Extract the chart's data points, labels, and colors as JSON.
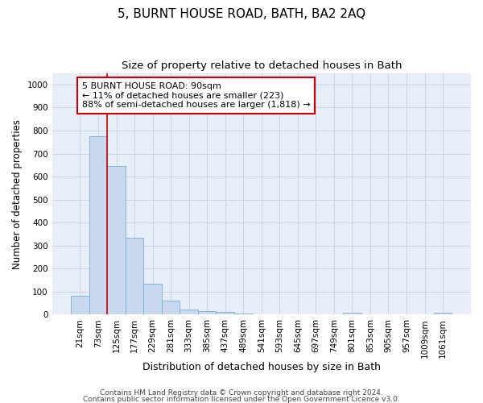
{
  "title": "5, BURNT HOUSE ROAD, BATH, BA2 2AQ",
  "subtitle": "Size of property relative to detached houses in Bath",
  "xlabel": "Distribution of detached houses by size in Bath",
  "ylabel": "Number of detached properties",
  "bar_color": "#c8d9ef",
  "bar_edge_color": "#7aadd4",
  "annotation_box_color": "#cc0000",
  "vline_color": "#cc0000",
  "categories": [
    "21sqm",
    "73sqm",
    "125sqm",
    "177sqm",
    "229sqm",
    "281sqm",
    "333sqm",
    "385sqm",
    "437sqm",
    "489sqm",
    "541sqm",
    "593sqm",
    "645sqm",
    "697sqm",
    "749sqm",
    "801sqm",
    "853sqm",
    "905sqm",
    "957sqm",
    "1009sqm",
    "1061sqm"
  ],
  "values": [
    83,
    775,
    645,
    335,
    135,
    60,
    22,
    16,
    12,
    6,
    2,
    0,
    0,
    0,
    0,
    7,
    0,
    0,
    0,
    0,
    7
  ],
  "ylim": [
    0,
    1050
  ],
  "yticks": [
    0,
    100,
    200,
    300,
    400,
    500,
    600,
    700,
    800,
    900,
    1000
  ],
  "annotation_text": "5 BURNT HOUSE ROAD: 90sqm\n← 11% of detached houses are smaller (223)\n88% of semi-detached houses are larger (1,818) →",
  "footnote1": "Contains HM Land Registry data © Crown copyright and database right 2024.",
  "footnote2": "Contains public sector information licensed under the Open Government Licence v3.0.",
  "background_color": "#ffffff",
  "plot_bg_color": "#e8eef8",
  "grid_color": "#c8d4e8",
  "title_fontsize": 11,
  "subtitle_fontsize": 9.5,
  "xlabel_fontsize": 9,
  "ylabel_fontsize": 8.5,
  "tick_fontsize": 7.5,
  "annotation_fontsize": 8,
  "footnote_fontsize": 6.5,
  "vline_x": 1.5
}
